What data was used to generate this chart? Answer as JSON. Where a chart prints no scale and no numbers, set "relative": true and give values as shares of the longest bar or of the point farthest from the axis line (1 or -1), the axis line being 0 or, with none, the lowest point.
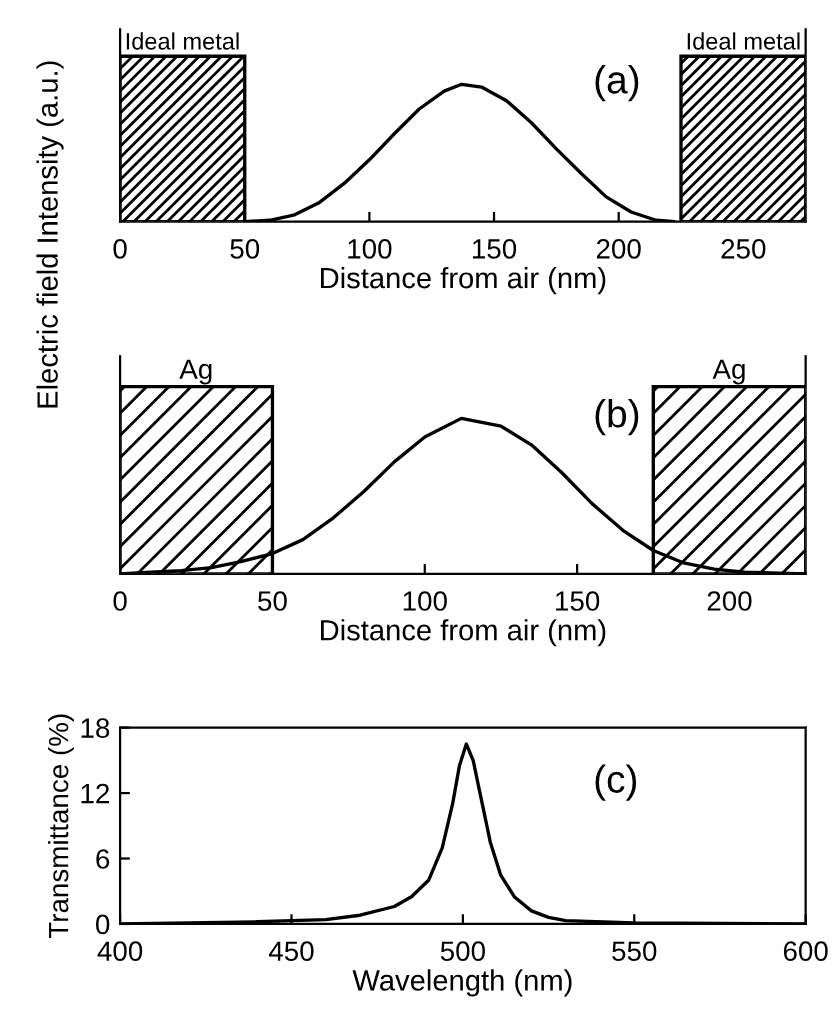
{
  "chart_data": [
    {
      "type": "line",
      "relative": true,
      "xlabel": "Distance from air (nm)",
      "ylabel": "Electric field Intensity (a.u.)",
      "xlim": [
        0,
        275
      ],
      "xticks": [
        0,
        50,
        100,
        150,
        200,
        250
      ],
      "tick_labels": "x",
      "annotations": [
        "(a)"
      ],
      "bands": [
        {
          "axis": "x",
          "from": 0,
          "to": 50,
          "label": "Ideal metal"
        },
        {
          "axis": "x",
          "from": 225,
          "to": 275,
          "label": "Ideal metal"
        }
      ],
      "series": [
        {
          "color": "#000000",
          "x": [
            50,
            60,
            70,
            80,
            90,
            100,
            110,
            120,
            130,
            137,
            145,
            155,
            165,
            175,
            185,
            195,
            205,
            215,
            222
          ],
          "values": [
            0,
            0.01,
            0.05,
            0.14,
            0.28,
            0.45,
            0.64,
            0.82,
            0.95,
            1,
            0.98,
            0.88,
            0.72,
            0.53,
            0.35,
            0.18,
            0.07,
            0.01,
            0
          ]
        }
      ]
    },
    {
      "type": "line",
      "relative": true,
      "xlabel": "Distance from air (nm)",
      "xlim": [
        0,
        225
      ],
      "xticks": [
        0,
        50,
        100,
        150,
        200
      ],
      "tick_labels": "x",
      "annotations": [
        "(b)"
      ],
      "bands": [
        {
          "axis": "x",
          "from": 0,
          "to": 50,
          "label": "Ag"
        },
        {
          "axis": "x",
          "from": 175,
          "to": 225,
          "label": "Ag"
        }
      ],
      "series": [
        {
          "color": "#000000",
          "x": [
            0,
            10,
            20,
            30,
            40,
            50,
            60,
            70,
            80,
            90,
            100,
            112,
            125,
            135,
            145,
            155,
            165,
            175,
            185,
            195,
            205,
            225
          ],
          "values": [
            0,
            0.01,
            0.02,
            0.04,
            0.08,
            0.13,
            0.22,
            0.36,
            0.53,
            0.72,
            0.88,
            1,
            0.95,
            0.83,
            0.65,
            0.45,
            0.28,
            0.15,
            0.07,
            0.03,
            0.01,
            0
          ]
        }
      ]
    },
    {
      "type": "line",
      "xlabel": "Wavelength (nm)",
      "ylabel": "Transmittance (%)",
      "xlim": [
        400,
        600
      ],
      "xticks": [
        400,
        450,
        500,
        550,
        600
      ],
      "ylim": [
        0,
        18
      ],
      "yticks": [
        0,
        6,
        12,
        18
      ],
      "annotations": [
        "(c)"
      ],
      "series": [
        {
          "color": "#000000",
          "x": [
            400,
            440,
            450,
            460,
            470,
            480,
            485,
            490,
            494,
            497,
            499,
            501,
            503,
            505,
            508,
            511,
            515,
            520,
            525,
            530,
            550,
            600
          ],
          "values": [
            0,
            0.2,
            0.3,
            0.4,
            0.8,
            1.6,
            2.5,
            4,
            7,
            11,
            14.5,
            16.5,
            15,
            12,
            7.5,
            4.5,
            2.5,
            1.2,
            0.6,
            0.3,
            0.1,
            0
          ]
        }
      ]
    }
  ]
}
